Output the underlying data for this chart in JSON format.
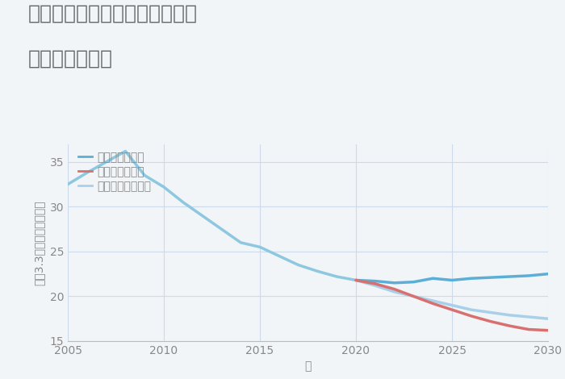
{
  "title_line1": "兵庫県たつの市龍野町北龍野の",
  "title_line2": "土地の価格推移",
  "xlabel": "年",
  "ylabel": "平（3.3㎡）単価（万円）",
  "xlim": [
    2005,
    2030
  ],
  "ylim": [
    15,
    37
  ],
  "yticks": [
    15,
    20,
    25,
    30,
    35
  ],
  "xticks": [
    2005,
    2010,
    2015,
    2020,
    2025,
    2030
  ],
  "background_color": "#f2f5f8",
  "plot_bg_color": "#f2f5f8",
  "grid_color": "#ccdaec",
  "historical": {
    "years": [
      2005,
      2006,
      2007,
      2008,
      2009,
      2010,
      2011,
      2012,
      2013,
      2014,
      2015,
      2016,
      2017,
      2018,
      2019,
      2020,
      2021
    ],
    "values": [
      32.5,
      33.8,
      35.0,
      36.2,
      33.5,
      32.2,
      30.5,
      29.0,
      27.5,
      26.0,
      25.5,
      24.5,
      23.5,
      22.8,
      22.2,
      21.8,
      21.5
    ],
    "color": "#8dc8e0",
    "linewidth": 2.5
  },
  "good": {
    "years": [
      2020,
      2021,
      2022,
      2023,
      2024,
      2025,
      2026,
      2027,
      2028,
      2029,
      2030
    ],
    "values": [
      21.8,
      21.7,
      21.5,
      21.6,
      22.0,
      21.8,
      22.0,
      22.1,
      22.2,
      22.3,
      22.5
    ],
    "color": "#5bafd6",
    "linewidth": 2.5,
    "label": "グッドシナリオ"
  },
  "bad": {
    "years": [
      2020,
      2021,
      2022,
      2023,
      2024,
      2025,
      2026,
      2027,
      2028,
      2029,
      2030
    ],
    "values": [
      21.8,
      21.4,
      20.8,
      20.0,
      19.2,
      18.5,
      17.8,
      17.2,
      16.7,
      16.3,
      16.2
    ],
    "color": "#d97070",
    "linewidth": 2.5,
    "label": "バッドシナリオ"
  },
  "normal": {
    "years": [
      2020,
      2021,
      2022,
      2023,
      2024,
      2025,
      2026,
      2027,
      2028,
      2029,
      2030
    ],
    "values": [
      21.8,
      21.2,
      20.5,
      20.0,
      19.5,
      19.0,
      18.5,
      18.2,
      17.9,
      17.7,
      17.5
    ],
    "color": "#a8d0e8",
    "linewidth": 2.5,
    "label": "ノーマルシナリオ"
  },
  "title_color": "#666666",
  "axis_color": "#888888",
  "tick_color": "#888888",
  "title_fontsize": 18,
  "label_fontsize": 10,
  "tick_fontsize": 10,
  "legend_fontsize": 10
}
